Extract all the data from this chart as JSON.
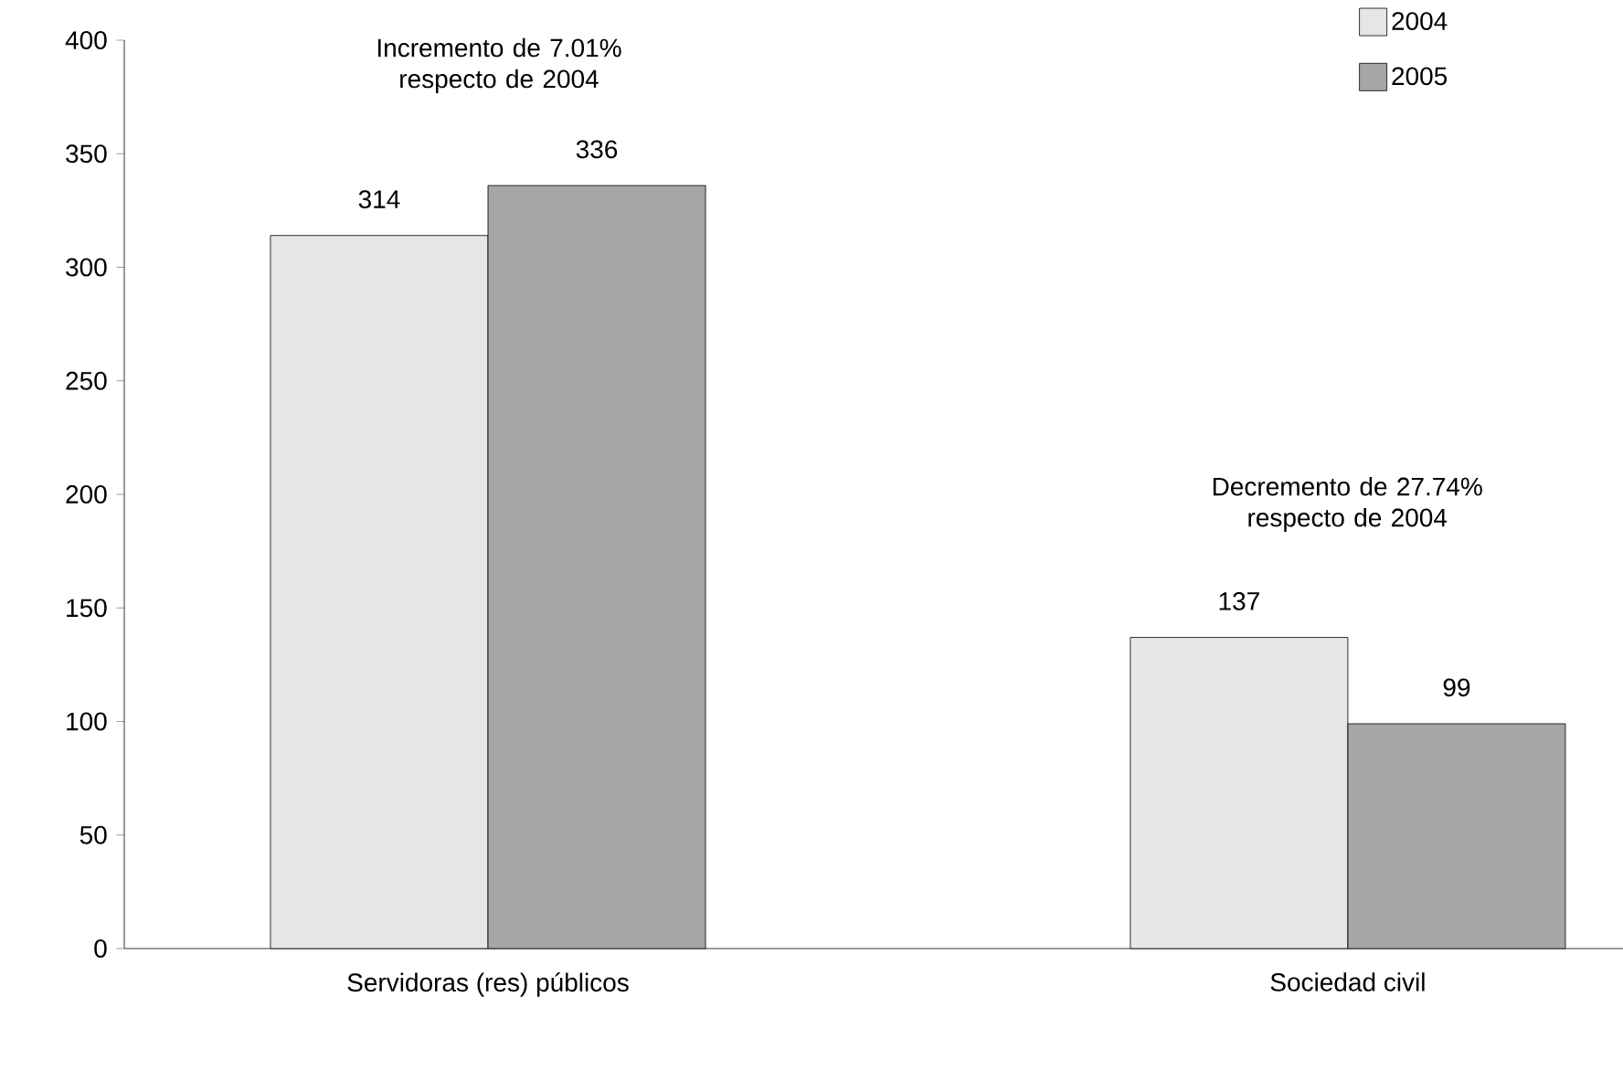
{
  "chart_data": {
    "type": "bar",
    "categories": [
      "Servidoras (res) públicos",
      "Sociedad civil"
    ],
    "series": [
      {
        "name": "2004",
        "color": "#e6e6e6",
        "values": [
          314,
          137
        ]
      },
      {
        "name": "2005",
        "color": "#a6a6a6",
        "values": [
          336,
          99
        ]
      }
    ],
    "ylim": [
      0,
      400
    ],
    "yticks": [
      0,
      50,
      100,
      150,
      200,
      250,
      300,
      350,
      400
    ],
    "data_labels": true,
    "legend": "top right",
    "annotations": [
      "Incremento de 7.01% respecto de 2004",
      "Decremento de 27.74% respecto de 2004"
    ]
  }
}
